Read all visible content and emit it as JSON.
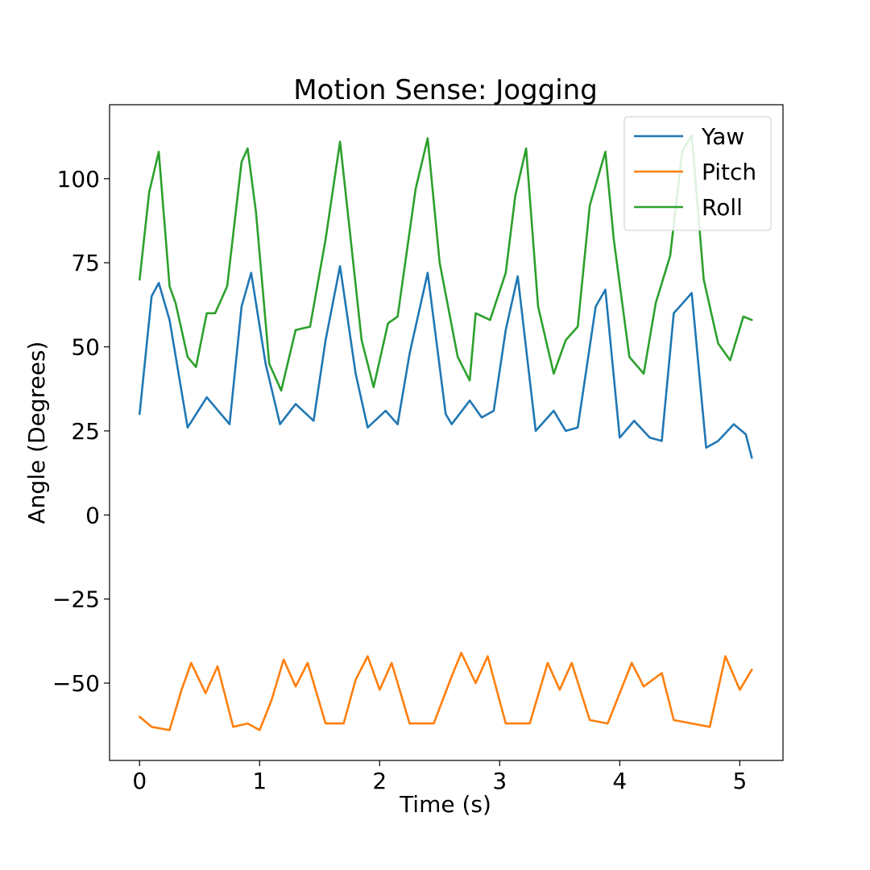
{
  "chart_data": {
    "type": "line",
    "title": "Motion Sense: Jogging",
    "xlabel": "Time (s)",
    "ylabel": "Angle (Degrees)",
    "xlim": [
      -0.25,
      5.36
    ],
    "ylim": [
      -73,
      122
    ],
    "xticks": [
      0,
      1,
      2,
      3,
      4,
      5
    ],
    "xtick_labels": [
      "0",
      "1",
      "2",
      "3",
      "4",
      "5"
    ],
    "yticks": [
      -50,
      -25,
      0,
      25,
      50,
      75,
      100
    ],
    "ytick_labels": [
      "−50",
      "−25",
      "0",
      "25",
      "50",
      "75",
      "100"
    ],
    "grid": false,
    "legend": "top-right",
    "series": [
      {
        "name": "Yaw",
        "color": "#1f77b4",
        "x": [
          0,
          0.1,
          0.16,
          0.25,
          0.4,
          0.56,
          0.75,
          0.85,
          0.93,
          1.05,
          1.17,
          1.3,
          1.45,
          1.55,
          1.67,
          1.8,
          1.9,
          2.05,
          2.15,
          2.25,
          2.4,
          2.55,
          2.6,
          2.75,
          2.85,
          2.95,
          3.05,
          3.15,
          3.3,
          3.45,
          3.55,
          3.65,
          3.8,
          3.88,
          4.0,
          4.12,
          4.25,
          4.35,
          4.45,
          4.6,
          4.72,
          4.82,
          4.95,
          5.05,
          5.1
        ],
        "y": [
          30,
          65,
          69,
          58,
          26,
          35,
          27,
          62,
          72,
          45,
          27,
          33,
          28,
          52,
          74,
          42,
          26,
          31,
          27,
          48,
          72,
          30,
          27,
          34,
          29,
          31,
          55,
          71,
          25,
          31,
          25,
          26,
          62,
          67,
          23,
          28,
          23,
          22,
          60,
          66,
          20,
          22,
          27,
          24,
          17
        ]
      },
      {
        "name": "Pitch",
        "color": "#ff7f0e",
        "x": [
          0,
          0.1,
          0.25,
          0.35,
          0.43,
          0.55,
          0.65,
          0.78,
          0.9,
          1.0,
          1.1,
          1.2,
          1.3,
          1.4,
          1.55,
          1.7,
          1.8,
          1.9,
          2.0,
          2.1,
          2.25,
          2.45,
          2.6,
          2.68,
          2.8,
          2.9,
          3.05,
          3.25,
          3.4,
          3.5,
          3.6,
          3.75,
          3.9,
          4.0,
          4.1,
          4.2,
          4.35,
          4.45,
          4.6,
          4.75,
          4.88,
          5.0,
          5.1
        ],
        "y": [
          -60,
          -63,
          -64,
          -52,
          -44,
          -53,
          -45,
          -63,
          -62,
          -64,
          -55,
          -43,
          -51,
          -44,
          -62,
          -62,
          -49,
          -42,
          -52,
          -44,
          -62,
          -62,
          -48,
          -41,
          -50,
          -42,
          -62,
          -62,
          -44,
          -52,
          -44,
          -61,
          -62,
          -53,
          -44,
          -51,
          -47,
          -61,
          -62,
          -63,
          -42,
          -52,
          -46
        ]
      },
      {
        "name": "Roll",
        "color": "#2ca02c",
        "x": [
          0,
          0.08,
          0.16,
          0.25,
          0.3,
          0.4,
          0.47,
          0.56,
          0.63,
          0.73,
          0.85,
          0.9,
          0.97,
          1.08,
          1.18,
          1.3,
          1.42,
          1.55,
          1.67,
          1.75,
          1.85,
          1.95,
          2.07,
          2.15,
          2.3,
          2.4,
          2.5,
          2.65,
          2.75,
          2.8,
          2.92,
          3.05,
          3.13,
          3.22,
          3.32,
          3.45,
          3.55,
          3.65,
          3.75,
          3.88,
          3.95,
          4.08,
          4.2,
          4.3,
          4.42,
          4.52,
          4.6,
          4.7,
          4.82,
          4.92,
          5.03,
          5.1
        ],
        "y": [
          70,
          96,
          108,
          68,
          63,
          47,
          44,
          60,
          60,
          68,
          105,
          109,
          90,
          45,
          37,
          55,
          56,
          82,
          111,
          85,
          52,
          38,
          57,
          59,
          97,
          112,
          75,
          47,
          40,
          60,
          58,
          72,
          95,
          109,
          62,
          42,
          52,
          56,
          92,
          108,
          82,
          47,
          42,
          63,
          77,
          108,
          113,
          70,
          51,
          46,
          59,
          58
        ]
      }
    ]
  }
}
